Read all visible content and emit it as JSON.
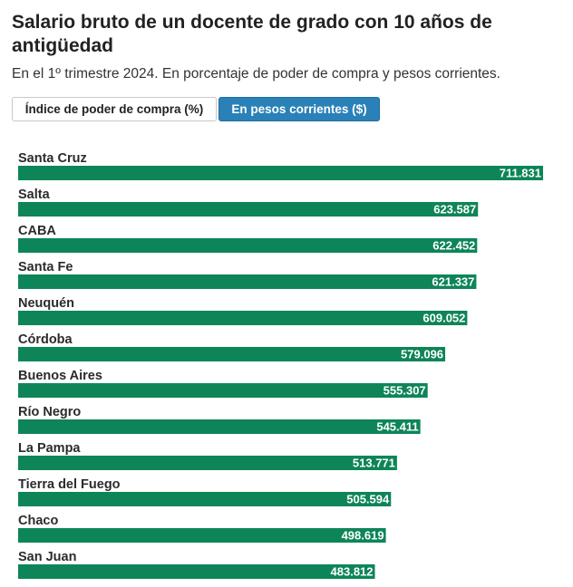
{
  "header": {
    "title": "Salario bruto de un docente de grado con 10 años de antigüedad",
    "subtitle": "En el 1º trimestre 2024. En porcentaje de poder de compra y pesos corrientes."
  },
  "tabs": [
    {
      "label": "Índice de poder de compra (%)",
      "active": false
    },
    {
      "label": "En pesos corrientes ($)",
      "active": true
    }
  ],
  "colors": {
    "bar": "#0e8558",
    "active_tab": "#2a81b8",
    "text": "#2b2b2b"
  },
  "chart_data": {
    "type": "bar",
    "orientation": "horizontal",
    "categories": [
      "Santa Cruz",
      "Salta",
      "CABA",
      "Santa Fe",
      "Neuquén",
      "Córdoba",
      "Buenos Aires",
      "Río Negro",
      "La Pampa",
      "Tierra del Fuego",
      "Chaco",
      "San Juan"
    ],
    "values": [
      711831,
      623587,
      622452,
      621337,
      609052,
      579096,
      555307,
      545411,
      513771,
      505594,
      498619,
      483812
    ],
    "value_labels": [
      "711.831",
      "623.587",
      "622.452",
      "621.337",
      "609.052",
      "579.096",
      "555.307",
      "545.411",
      "513.771",
      "505.594",
      "498.619",
      "483.812"
    ],
    "title": "",
    "xlabel": "",
    "ylabel": "",
    "xlim": [
      0,
      711831
    ],
    "grid": false,
    "legend": "none"
  }
}
